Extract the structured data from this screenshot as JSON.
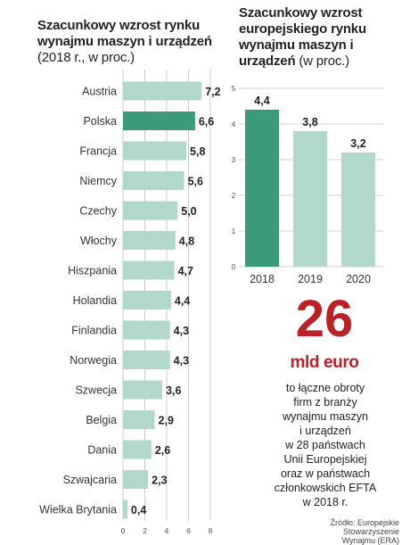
{
  "charts": {
    "left": {
      "title": "Szacunkowy wzrost rynku wynajmu maszyn i urządzeń",
      "subtitle": "(2018 r., w proc.)"
    },
    "right": {
      "title": "Szacunkowy wzrost europejskiego rynku wynajmu maszyn i urządzeń",
      "subtitle": "(w proc.)"
    }
  },
  "chart_data": [
    {
      "type": "bar",
      "orientation": "horizontal",
      "categories": [
        "Austria",
        "Polska",
        "Francja",
        "Niemcy",
        "Czechy",
        "Włochy",
        "Hiszpania",
        "Holandia",
        "Finlandia",
        "Norwegia",
        "Szwecja",
        "Belgia",
        "Dania",
        "Szwajcaria",
        "Wielka Brytania"
      ],
      "values": [
        7.2,
        6.6,
        5.8,
        5.6,
        5.0,
        4.8,
        4.7,
        4.4,
        4.3,
        4.3,
        3.6,
        2.9,
        2.6,
        2.3,
        0.4
      ],
      "value_labels": [
        "7,2",
        "6,6",
        "5,8",
        "5,6",
        "5,0",
        "4,8",
        "4,7",
        "4,4",
        "4,3",
        "4,3",
        "3,6",
        "2,9",
        "2,6",
        "2,3",
        "0,4"
      ],
      "highlight": "Polska",
      "xlim": [
        0,
        8
      ],
      "xticks": [
        "0",
        "2",
        "4",
        "6",
        "8"
      ],
      "grid": true,
      "colors": {
        "bar": "#b2d8ca",
        "highlight": "#3a9a7a",
        "grid": "#c0c0c0"
      }
    },
    {
      "type": "bar",
      "categories": [
        "2018",
        "2019",
        "2020"
      ],
      "values": [
        4.4,
        3.8,
        3.2
      ],
      "value_labels": [
        "4,4",
        "3,8",
        "3,2"
      ],
      "highlight": "2018",
      "ylim": [
        0,
        5
      ],
      "yticks": [
        "0",
        "1",
        "2",
        "3",
        "4",
        "5"
      ],
      "grid": true,
      "colors": {
        "bar": "#b2d8ca",
        "highlight": "#3a9a7a",
        "grid": "#c0c0c0"
      }
    }
  ],
  "highlight": {
    "number": "26",
    "unit": "mld euro",
    "description": "to łączne obroty\nfirm z branży\nwynajmu maszyn\ni urządzeń\nw 28 państwach\nUnii Europejskiej\noraz w państwach\nczłonkowskich EFTA\nw 2018 r.",
    "accent_color": "#b8232a"
  },
  "source": {
    "line1": "Źródło: Europejskie Stowarzyszenie",
    "line2": "Wynajmu (ERA)"
  }
}
